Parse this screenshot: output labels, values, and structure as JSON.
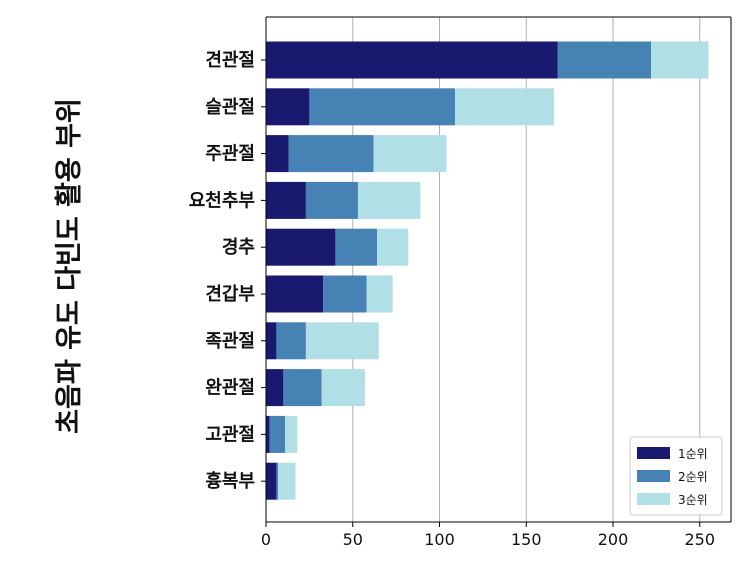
{
  "chart_data": {
    "type": "bar",
    "orientation": "horizontal",
    "stacked": true,
    "ylabel": "초음파 유도 다빈도 활용 부위",
    "xlabel": "",
    "categories": [
      "견관절",
      "슬관절",
      "주관절",
      "요천추부",
      "경추",
      "견갑부",
      "족관절",
      "완관절",
      "고관절",
      "흉복부"
    ],
    "series": [
      {
        "name": "1순위",
        "color": "#191970",
        "values": [
          168,
          25,
          13,
          23,
          40,
          33,
          6,
          10,
          2,
          6
        ]
      },
      {
        "name": "2순위",
        "color": "#4682B4",
        "values": [
          54,
          84,
          49,
          30,
          24,
          25,
          17,
          22,
          9,
          1
        ]
      },
      {
        "name": "3순위",
        "color": "#B0DFE5",
        "values": [
          33,
          57,
          42,
          36,
          18,
          15,
          42,
          25,
          7,
          10
        ]
      }
    ],
    "xlim": [
      0,
      268
    ],
    "xticks": [
      0,
      50,
      100,
      150,
      200,
      250
    ],
    "grid": "x",
    "legend": "bottom-right"
  }
}
